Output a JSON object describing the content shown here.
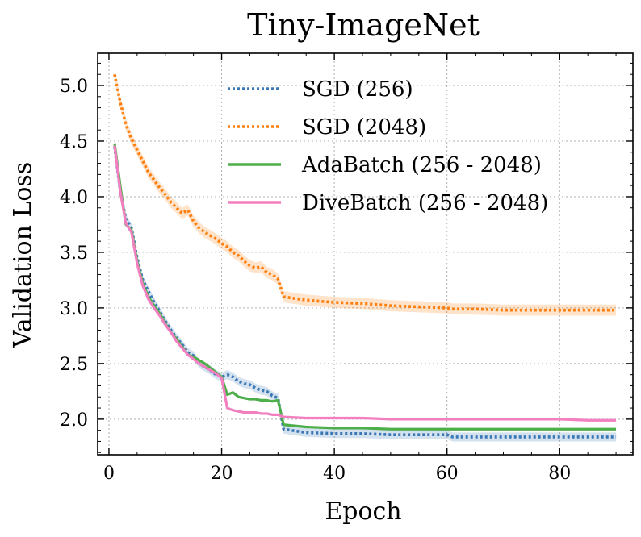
{
  "chart_data": {
    "type": "line",
    "title": "Tiny-ImageNet",
    "xlabel": "Epoch",
    "ylabel": "Validation Loss",
    "xlim": [
      -2,
      93
    ],
    "ylim": [
      1.68,
      5.29
    ],
    "xticks": [
      0,
      20,
      40,
      60,
      80
    ],
    "xtick_labels": [
      "0",
      "20",
      "40",
      "60",
      "80"
    ],
    "yticks": [
      2.0,
      2.5,
      3.0,
      3.5,
      4.0,
      4.5,
      5.0
    ],
    "ytick_labels": [
      "2.0",
      "2.5",
      "3.0",
      "3.5",
      "4.0",
      "4.5",
      "5.0"
    ],
    "grid": true,
    "legend_position": "top-right",
    "series": [
      {
        "name": "SGD (256)",
        "color": "#3a78b5",
        "style": "dotted",
        "band": 0.04,
        "x": [
          1,
          2,
          3,
          4,
          5,
          6,
          7,
          8,
          9,
          10,
          11,
          12,
          13,
          14,
          15,
          16,
          17,
          18,
          19,
          20,
          21,
          22,
          23,
          24,
          25,
          26,
          27,
          28,
          29,
          30,
          31,
          35,
          40,
          45,
          50,
          55,
          60,
          61,
          65,
          70,
          75,
          80,
          85,
          90
        ],
        "y": [
          4.45,
          4.05,
          3.8,
          3.72,
          3.45,
          3.25,
          3.15,
          3.05,
          2.97,
          2.88,
          2.8,
          2.73,
          2.67,
          2.6,
          2.57,
          2.5,
          2.47,
          2.44,
          2.4,
          2.38,
          2.4,
          2.38,
          2.34,
          2.32,
          2.31,
          2.28,
          2.26,
          2.25,
          2.21,
          2.19,
          1.91,
          1.88,
          1.87,
          1.87,
          1.86,
          1.86,
          1.86,
          1.84,
          1.84,
          1.84,
          1.84,
          1.84,
          1.84,
          1.84
        ]
      },
      {
        "name": "SGD (2048)",
        "color": "#ff7f0e",
        "style": "dotted",
        "band": 0.05,
        "x": [
          1,
          2,
          3,
          4,
          5,
          6,
          7,
          8,
          9,
          10,
          11,
          12,
          13,
          14,
          15,
          16,
          17,
          18,
          19,
          20,
          21,
          22,
          23,
          24,
          25,
          26,
          27,
          28,
          29,
          30,
          31,
          35,
          40,
          45,
          50,
          55,
          60,
          61,
          65,
          70,
          75,
          80,
          85,
          90
        ],
        "y": [
          5.1,
          4.85,
          4.65,
          4.52,
          4.42,
          4.32,
          4.22,
          4.15,
          4.08,
          4.02,
          3.95,
          3.9,
          3.85,
          3.88,
          3.78,
          3.72,
          3.68,
          3.65,
          3.62,
          3.58,
          3.55,
          3.5,
          3.47,
          3.42,
          3.38,
          3.36,
          3.37,
          3.32,
          3.3,
          3.26,
          3.1,
          3.07,
          3.05,
          3.04,
          3.02,
          3.01,
          3.0,
          2.99,
          2.99,
          2.98,
          2.98,
          2.98,
          2.98,
          2.98
        ]
      },
      {
        "name": "AdaBatch (256 - 2048)",
        "color": "#4daf4a",
        "style": "solid",
        "band": 0.0,
        "x": [
          1,
          2,
          3,
          4,
          5,
          6,
          7,
          8,
          9,
          10,
          11,
          12,
          13,
          14,
          15,
          16,
          17,
          18,
          19,
          20,
          21,
          22,
          23,
          24,
          25,
          26,
          27,
          28,
          29,
          30,
          31,
          35,
          40,
          45,
          50,
          55,
          60,
          65,
          70,
          75,
          80,
          85,
          90
        ],
        "y": [
          4.48,
          4.1,
          3.75,
          3.7,
          3.42,
          3.22,
          3.1,
          3.02,
          2.95,
          2.86,
          2.78,
          2.72,
          2.65,
          2.58,
          2.56,
          2.53,
          2.5,
          2.46,
          2.42,
          2.38,
          2.22,
          2.24,
          2.2,
          2.19,
          2.18,
          2.18,
          2.17,
          2.17,
          2.16,
          2.17,
          1.95,
          1.93,
          1.92,
          1.92,
          1.91,
          1.91,
          1.91,
          1.91,
          1.91,
          1.91,
          1.91,
          1.91,
          1.91
        ]
      },
      {
        "name": "DiveBatch (256 - 2048)",
        "color": "#f27fbf",
        "style": "solid",
        "band": 0.0,
        "x": [
          1,
          2,
          3,
          4,
          5,
          6,
          7,
          8,
          9,
          10,
          11,
          12,
          13,
          14,
          15,
          16,
          17,
          18,
          19,
          20,
          21,
          22,
          23,
          24,
          25,
          26,
          27,
          28,
          29,
          30,
          31,
          35,
          40,
          45,
          50,
          55,
          60,
          65,
          70,
          75,
          80,
          85,
          90
        ],
        "y": [
          4.46,
          4.05,
          3.76,
          3.68,
          3.4,
          3.2,
          3.08,
          3.0,
          2.93,
          2.85,
          2.78,
          2.7,
          2.64,
          2.58,
          2.54,
          2.5,
          2.47,
          2.44,
          2.41,
          2.37,
          2.1,
          2.08,
          2.07,
          2.06,
          2.06,
          2.06,
          2.05,
          2.05,
          2.04,
          2.04,
          2.02,
          2.01,
          2.01,
          2.01,
          2.0,
          2.0,
          2.0,
          2.0,
          2.0,
          2.0,
          2.0,
          1.99,
          1.99
        ]
      }
    ]
  }
}
